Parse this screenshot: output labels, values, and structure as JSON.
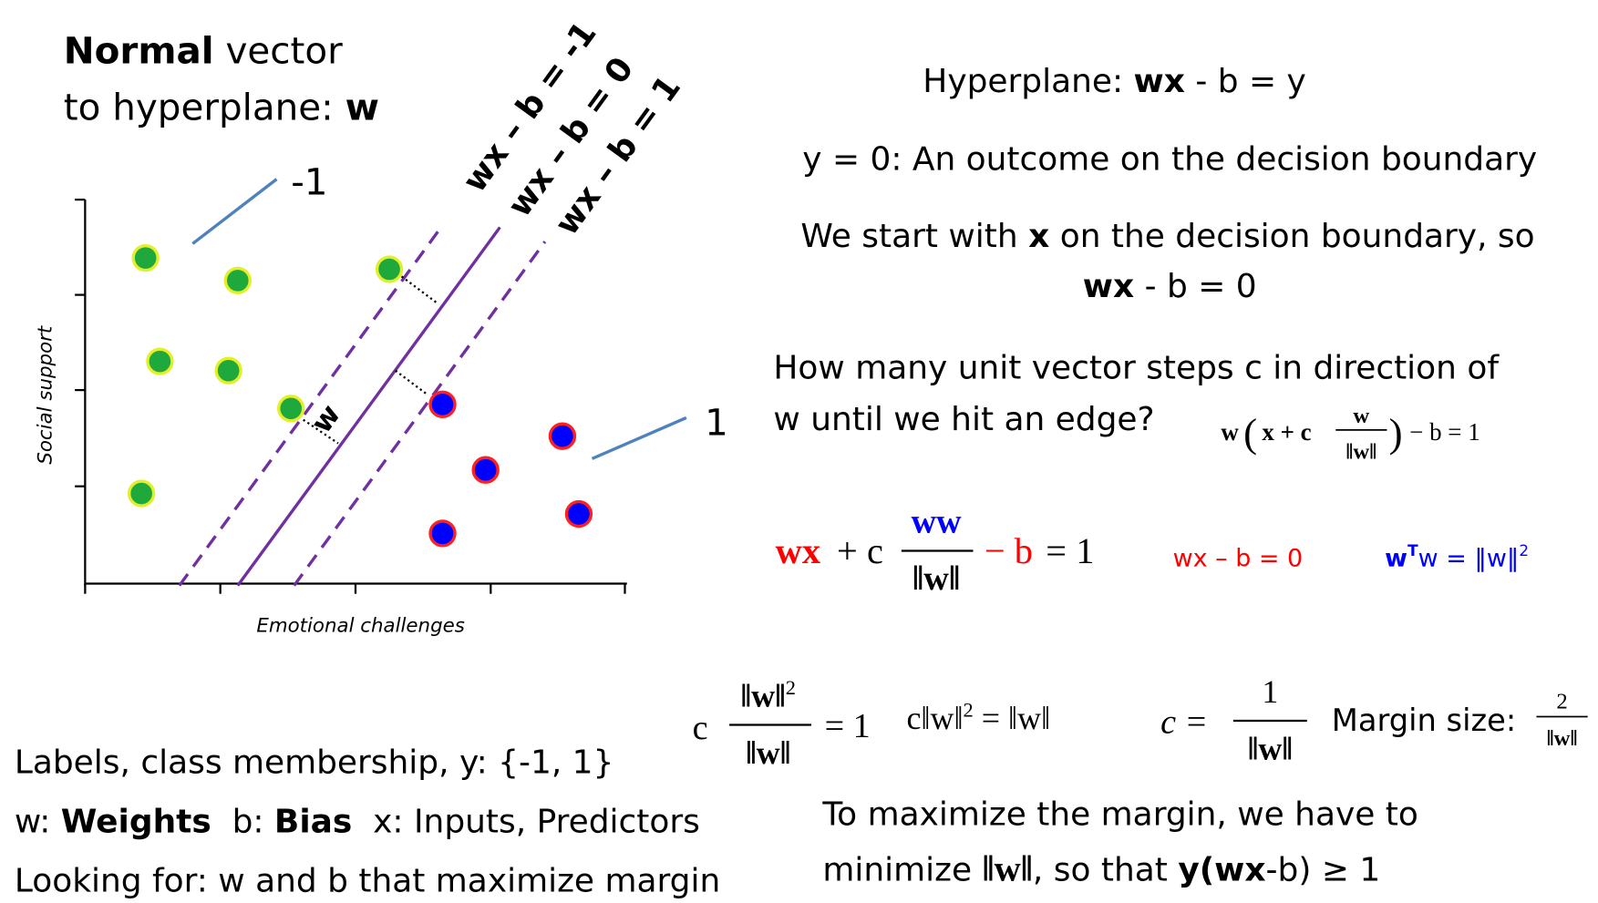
{
  "title": {
    "line1_bold": "Normal",
    "line1": " vector",
    "line2": "to hyperplane: ",
    "line2_bold": "w"
  },
  "plot": {
    "x_label": "Emotional challenges",
    "y_label": "Social support",
    "class_neg": "-1",
    "class_pos": "1",
    "boundaries": [
      "wx – b = -1",
      "wx – b = 0",
      "wx – b = 1"
    ],
    "normal_label": "w"
  },
  "notes": {
    "hyperplane": [
      "Hyperplane: ",
      "wx",
      " - b = y"
    ],
    "boundary": "y = 0: An outcome on the decision boundary",
    "start": [
      "We start with ",
      "x",
      " on the decision boundary, so"
    ],
    "start_eq": [
      "wx",
      " - b = 0"
    ],
    "steps": [
      "How many unit vector steps c in direction of",
      "w until we hit an edge?"
    ],
    "step_eq": {
      "left": "w",
      "open": "(",
      "inner": "x + c",
      "num": "w",
      "den": "‖w‖",
      "close": ")",
      "right": " − b = 1"
    },
    "main_eq": {
      "wx": "wx",
      "plus": " + c",
      "num": "ww",
      "den": "‖w‖",
      "minus_b": " − b",
      "eq": " = 1"
    },
    "side1": "wx – b = 0",
    "side2": {
      "w": "w",
      "T": "T",
      "rest": "w = ‖w‖",
      "sq": "2"
    },
    "eq1": {
      "c": "c",
      "num": "‖w‖",
      "num_sup": "2",
      "den": "‖w‖",
      "eq": "= 1"
    },
    "eq2": {
      "a": "c‖w‖",
      "sup": "2",
      "b": " = ‖w‖"
    },
    "eq3": {
      "c": "c",
      "eq": " = ",
      "num": "1",
      "den": "‖w‖"
    },
    "margin": {
      "label": "Margin size: ",
      "num": "2",
      "den": "‖w‖"
    }
  },
  "definitions": {
    "labels": "Labels, class membership, y: {-1, 1}",
    "vars": [
      "w: ",
      "Weights",
      "  b: ",
      "Bias",
      "  x: Inputs, Predictors"
    ],
    "goal": "Looking for: w and b that maximize margin",
    "maximize": [
      "To maximize the margin, we have to",
      "minimize ",
      "‖w‖",
      ", so that ",
      "y(wx",
      "-b) ≥ 1"
    ]
  }
}
